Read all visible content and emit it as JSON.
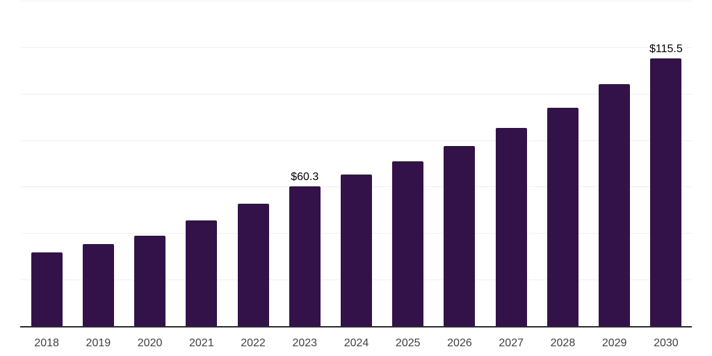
{
  "chart_data": {
    "type": "bar",
    "title": "",
    "xlabel": "",
    "ylabel": "",
    "categories": [
      "2018",
      "2019",
      "2020",
      "2021",
      "2022",
      "2023",
      "2024",
      "2025",
      "2026",
      "2027",
      "2028",
      "2029",
      "2030"
    ],
    "values": [
      31.9,
      35.6,
      39.3,
      45.8,
      52.9,
      60.3,
      65.6,
      71.2,
      77.8,
      85.5,
      94.2,
      104.4,
      115.5
    ],
    "data_labels": [
      "",
      "",
      "",
      "",
      "",
      "$60.3",
      "",
      "",
      "",
      "",
      "",
      "",
      "$115.5"
    ],
    "ylim": [
      0,
      140
    ],
    "grid_step": 20,
    "grid": "on",
    "legend": "none",
    "y_tick_labels_visible": false,
    "colors": {
      "bar": "#331249",
      "axis_line": "#2b2b2b",
      "gridline": "#f0f0f0",
      "tick_label": "#3f3f3f",
      "data_label": "#000000",
      "background": "#ffffff"
    }
  }
}
